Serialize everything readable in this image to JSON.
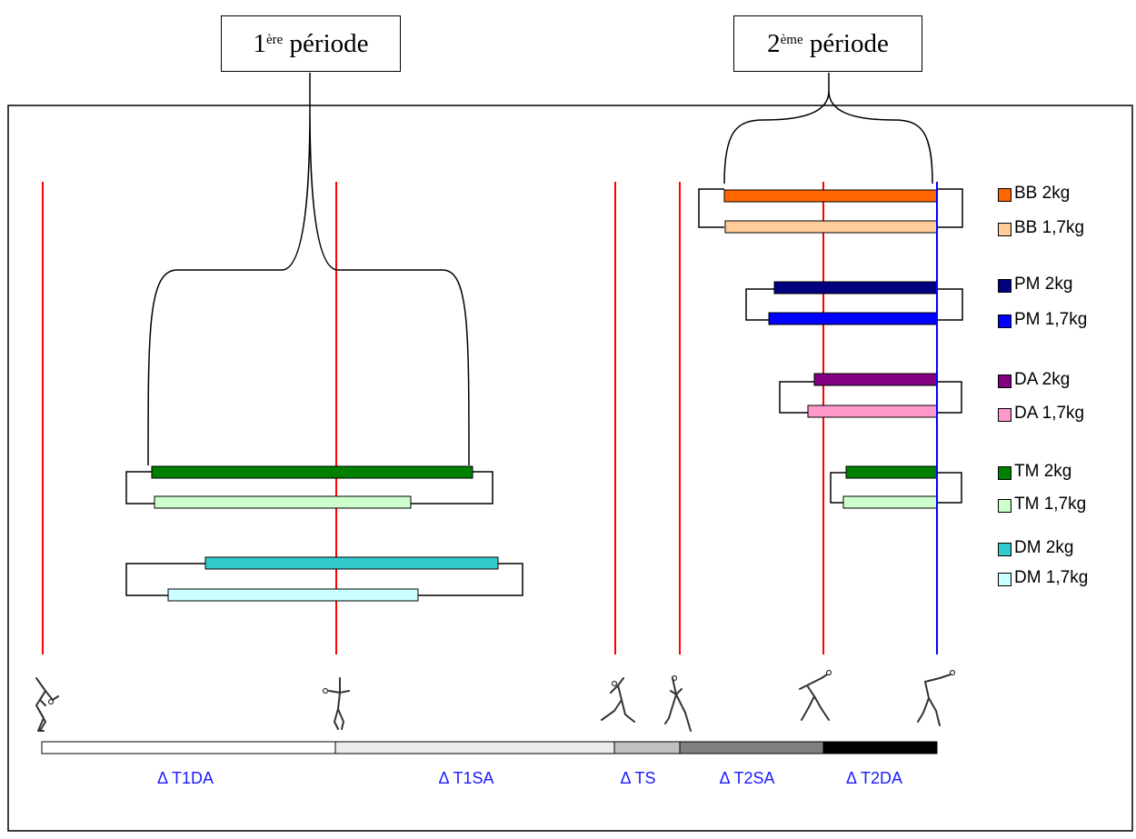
{
  "periods": [
    {
      "id": "p1",
      "num": "1",
      "sup": "ère",
      "text": "période"
    },
    {
      "id": "p2",
      "num": "2",
      "sup": "ème",
      "text": "période"
    }
  ],
  "phases": [
    {
      "label": "Δ T1DA",
      "fill": "#ffffff"
    },
    {
      "label": "Δ T1SA",
      "fill": "#ececec"
    },
    {
      "label": "Δ TS",
      "fill": "#c0c0c0"
    },
    {
      "label": "Δ T2SA",
      "fill": "#808080"
    },
    {
      "label": "Δ T2DA",
      "fill": "#000000"
    }
  ],
  "bars": [
    {
      "label": "BB 2kg",
      "color": "#ff6600"
    },
    {
      "label": "BB 1,7kg",
      "color": "#ffcc99"
    },
    {
      "label": "PM 2kg",
      "color": "#000080"
    },
    {
      "label": "PM 1,7kg",
      "color": "#0000ff"
    },
    {
      "label": "DA 2kg",
      "color": "#800080"
    },
    {
      "label": "DA 1,7kg",
      "color": "#ff99cc"
    },
    {
      "label": "TM 2kg",
      "color": "#008000"
    },
    {
      "label": "TM 1,7kg",
      "color": "#ccffcc"
    },
    {
      "label": "DM 2kg",
      "color": "#33cccc"
    },
    {
      "label": "DM 1,7kg",
      "color": "#ccffff"
    }
  ],
  "colors": {
    "event_line": "#ff0000",
    "release_line": "#0000ff",
    "label_blue": "#1a1aff"
  }
}
